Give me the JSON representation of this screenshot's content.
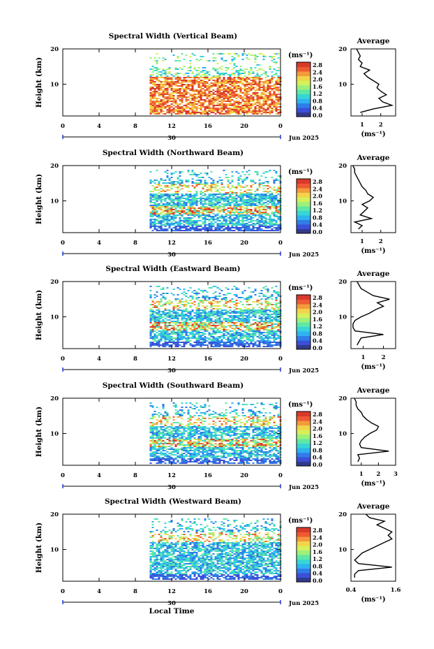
{
  "figure": {
    "xlabel_bottom": "Local Time",
    "date_label": "Jun 2025",
    "day_label": "30",
    "height_label": "Height (km)",
    "avg_title": "Average",
    "unit_label": "(ms⁻¹)",
    "colormap": [
      "#333a8c",
      "#3b4fd8",
      "#2f7de8",
      "#2fb3ee",
      "#36d6d6",
      "#5ee7a6",
      "#9df07a",
      "#d6f05a",
      "#f3d34a",
      "#f49a3b",
      "#ee5a32",
      "#d83a2a"
    ]
  },
  "chart_data": [
    {
      "type": "heatmap",
      "title": "Spectral Width (Vertical Beam)",
      "xlabel": "",
      "ylabel": "Height (km)",
      "xlim": [
        0,
        24
      ],
      "ylim": [
        1,
        20
      ],
      "xticks": [
        "0",
        "4",
        "8",
        "12",
        "16",
        "20",
        "0"
      ],
      "yticks": [
        "20",
        "10"
      ],
      "colorbar_ticks": [
        "2.8",
        "2.4",
        "2.0",
        "1.6",
        "1.2",
        "0.8",
        "0.4",
        "0.0"
      ],
      "colorbar_range": [
        0,
        2.8
      ],
      "data_start_hour": 9.5,
      "profile": {
        "title": "Average",
        "xlabel": "(ms⁻¹)",
        "xticks": [
          "1",
          "2"
        ],
        "xlim": [
          0.4,
          2.8
        ],
        "heights": [
          2,
          3,
          4,
          5,
          6,
          7,
          8,
          9,
          10,
          11,
          12,
          13,
          14,
          15,
          16,
          17,
          18,
          19,
          20
        ],
        "values": [
          0.9,
          1.6,
          2.6,
          2.1,
          1.9,
          2.3,
          2.0,
          1.8,
          1.9,
          1.6,
          1.3,
          1.1,
          1.4,
          0.9,
          1.0,
          0.8,
          0.9,
          0.8,
          0.7
        ]
      }
    },
    {
      "type": "heatmap",
      "title": "Spectral Width (Northward Beam)",
      "xlabel": "",
      "ylabel": "Height (km)",
      "xlim": [
        0,
        24
      ],
      "ylim": [
        1,
        20
      ],
      "xticks": [
        "0",
        "4",
        "8",
        "12",
        "16",
        "20",
        "0"
      ],
      "yticks": [
        "20",
        "10"
      ],
      "colorbar_ticks": [
        "2.8",
        "2.4",
        "2.0",
        "1.6",
        "1.2",
        "0.8",
        "0.4",
        "0.0"
      ],
      "colorbar_range": [
        0,
        2.8
      ],
      "data_start_hour": 9.5,
      "profile": {
        "title": "Average",
        "xlabel": "(ms⁻¹)",
        "xticks": [
          "1",
          "2"
        ],
        "xlim": [
          0.4,
          2.8
        ],
        "heights": [
          2,
          3,
          4,
          5,
          6,
          7,
          8,
          9,
          10,
          11,
          12,
          13,
          14,
          15,
          16,
          17,
          18,
          19,
          20
        ],
        "values": [
          0.8,
          1.0,
          0.6,
          1.5,
          0.9,
          1.1,
          1.3,
          1.0,
          1.4,
          1.6,
          1.3,
          1.2,
          1.0,
          0.9,
          0.8,
          0.7,
          0.6,
          0.6,
          0.5
        ]
      }
    },
    {
      "type": "heatmap",
      "title": "Spectral Width (Eastward Beam)",
      "xlabel": "",
      "ylabel": "Height (km)",
      "xlim": [
        0,
        24
      ],
      "ylim": [
        1,
        20
      ],
      "xticks": [
        "0",
        "4",
        "8",
        "12",
        "16",
        "20",
        "0"
      ],
      "yticks": [
        "20",
        "10"
      ],
      "colorbar_ticks": [
        "2.8",
        "2.4",
        "2.0",
        "1.6",
        "1.2",
        "0.8",
        "0.4",
        "0.0"
      ],
      "colorbar_range": [
        0,
        2.8
      ],
      "data_start_hour": 9.5,
      "profile": {
        "title": "Average",
        "xlabel": "(ms⁻¹)",
        "xticks": [
          "1",
          "2"
        ],
        "xlim": [
          0.4,
          2.6
        ],
        "heights": [
          2,
          3,
          4,
          5,
          6,
          7,
          8,
          9,
          10,
          11,
          12,
          13,
          14,
          15,
          16,
          17,
          18,
          19,
          20
        ],
        "values": [
          0.7,
          0.8,
          0.9,
          2.0,
          0.6,
          0.5,
          0.5,
          0.6,
          0.9,
          1.3,
          1.6,
          2.0,
          1.7,
          2.3,
          1.5,
          1.2,
          0.9,
          0.8,
          0.7
        ]
      }
    },
    {
      "type": "heatmap",
      "title": "Spectral Width (Southward Beam)",
      "xlabel": "",
      "ylabel": "Height (km)",
      "xlim": [
        0,
        24
      ],
      "ylim": [
        1,
        20
      ],
      "xticks": [
        "0",
        "4",
        "8",
        "12",
        "16",
        "20",
        "0"
      ],
      "yticks": [
        "20",
        "10"
      ],
      "colorbar_ticks": [
        "2.8",
        "2.4",
        "2.0",
        "1.6",
        "1.2",
        "0.8",
        "0.4",
        "0.0"
      ],
      "colorbar_range": [
        0,
        2.8
      ],
      "data_start_hour": 9.5,
      "profile": {
        "title": "Average",
        "xlabel": "(ms⁻¹)",
        "xticks": [
          "1",
          "2",
          "3"
        ],
        "xlim": [
          0.4,
          3.0
        ],
        "heights": [
          2,
          3,
          4,
          5,
          6,
          7,
          8,
          9,
          10,
          11,
          12,
          13,
          14,
          15,
          16,
          17,
          18,
          19,
          20
        ],
        "values": [
          0.8,
          0.9,
          0.8,
          2.6,
          1.0,
          0.9,
          1.0,
          1.2,
          1.5,
          1.9,
          2.0,
          1.6,
          1.3,
          1.1,
          1.0,
          0.8,
          0.7,
          0.7,
          0.6
        ]
      }
    },
    {
      "type": "heatmap",
      "title": "Spectral Width (Westward Beam)",
      "xlabel": "Local Time",
      "ylabel": "Height (km)",
      "xlim": [
        0,
        24
      ],
      "ylim": [
        1,
        20
      ],
      "xticks": [
        "0",
        "4",
        "8",
        "12",
        "16",
        "20",
        "0"
      ],
      "yticks": [
        "20",
        "10"
      ],
      "colorbar_ticks": [
        "2.8",
        "2.4",
        "2.0",
        "1.6",
        "1.2",
        "0.8",
        "0.4",
        "0.0"
      ],
      "colorbar_range": [
        0,
        2.8
      ],
      "data_start_hour": 9.5,
      "profile": {
        "title": "Average",
        "xlabel": "(ms⁻¹)",
        "xticks": [
          "0.4",
          "1.6"
        ],
        "xlim": [
          0.4,
          1.6
        ],
        "heights": [
          2,
          3,
          4,
          5,
          6,
          7,
          8,
          9,
          10,
          11,
          12,
          13,
          14,
          15,
          16,
          17,
          18,
          19,
          20
        ],
        "values": [
          0.5,
          0.5,
          0.6,
          1.5,
          0.6,
          0.5,
          0.6,
          0.7,
          0.9,
          1.1,
          1.3,
          1.5,
          1.4,
          1.5,
          1.3,
          1.1,
          1.3,
          0.9,
          0.8
        ]
      }
    }
  ]
}
